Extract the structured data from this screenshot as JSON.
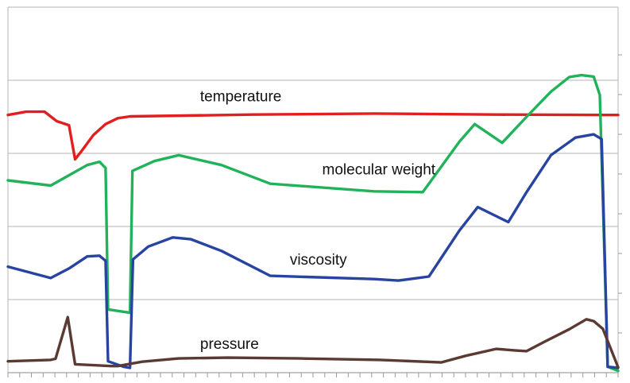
{
  "chart_data": {
    "type": "line",
    "title": "",
    "xlabel": "",
    "ylabel": "",
    "xlim": [
      0,
      100
    ],
    "ylim": [
      0,
      100
    ],
    "grid": true,
    "legend": "none",
    "gridlines_y": [
      0,
      20,
      40,
      60,
      80,
      100
    ],
    "x_minor_ticks": 52,
    "right_ticks": 8,
    "series": [
      {
        "name": "temperature",
        "color": "#e02020",
        "points": [
          [
            0,
            70.5
          ],
          [
            3,
            71.4
          ],
          [
            6,
            71.4
          ],
          [
            8,
            68.8
          ],
          [
            10,
            67.7
          ],
          [
            11,
            58.4
          ],
          [
            12,
            60.5
          ],
          [
            14,
            65.0
          ],
          [
            16,
            68.0
          ],
          [
            18,
            69.6
          ],
          [
            20,
            70.1
          ],
          [
            40,
            70.6
          ],
          [
            60,
            70.9
          ],
          [
            80,
            70.6
          ],
          [
            100,
            70.5
          ]
        ]
      },
      {
        "name": "molecular weight",
        "color": "#22b35a",
        "points": [
          [
            0,
            52.6
          ],
          [
            7,
            51.2
          ],
          [
            10,
            54.0
          ],
          [
            13,
            56.8
          ],
          [
            15,
            57.7
          ],
          [
            16,
            56.0
          ],
          [
            16.4,
            17.3
          ],
          [
            20,
            16.4
          ],
          [
            20.4,
            55.2
          ],
          [
            24,
            57.9
          ],
          [
            28,
            59.5
          ],
          [
            35,
            56.8
          ],
          [
            43,
            51.7
          ],
          [
            60,
            49.6
          ],
          [
            68,
            49.4
          ],
          [
            74,
            63.2
          ],
          [
            76.5,
            68.0
          ],
          [
            81,
            62.9
          ],
          [
            85,
            70.0
          ],
          [
            89,
            76.9
          ],
          [
            92,
            80.9
          ],
          [
            94,
            81.4
          ],
          [
            96,
            81.0
          ],
          [
            97,
            76.0
          ],
          [
            98.3,
            1.6
          ],
          [
            100,
            0.5
          ]
        ]
      },
      {
        "name": "viscosity",
        "color": "#2844a0",
        "points": [
          [
            0,
            29.0
          ],
          [
            7,
            25.9
          ],
          [
            10,
            28.5
          ],
          [
            13,
            31.8
          ],
          [
            15,
            32.0
          ],
          [
            16,
            30.6
          ],
          [
            16.4,
            3.1
          ],
          [
            19,
            1.6
          ],
          [
            20,
            1.3
          ],
          [
            20.5,
            31.0
          ],
          [
            23,
            34.5
          ],
          [
            27,
            37.0
          ],
          [
            30,
            36.5
          ],
          [
            35,
            33.3
          ],
          [
            43,
            26.5
          ],
          [
            60,
            25.6
          ],
          [
            64,
            25.2
          ],
          [
            69,
            26.3
          ],
          [
            74,
            38.9
          ],
          [
            77,
            45.3
          ],
          [
            82,
            41.2
          ],
          [
            85,
            49.4
          ],
          [
            89,
            59.5
          ],
          [
            93,
            64.3
          ],
          [
            96,
            65.2
          ],
          [
            97.3,
            63.9
          ],
          [
            98.3,
            1.6
          ],
          [
            100,
            1.3
          ]
        ]
      },
      {
        "name": "pressure",
        "color": "#5a3a32",
        "points": [
          [
            0,
            3.1
          ],
          [
            7,
            3.5
          ],
          [
            7.8,
            3.8
          ],
          [
            9.8,
            15.2
          ],
          [
            11,
            2.3
          ],
          [
            17,
            1.8
          ],
          [
            18,
            1.8
          ],
          [
            22,
            3.0
          ],
          [
            28,
            3.9
          ],
          [
            36,
            4.1
          ],
          [
            48,
            3.9
          ],
          [
            61,
            3.5
          ],
          [
            71,
            2.8
          ],
          [
            75,
            4.6
          ],
          [
            80,
            6.5
          ],
          [
            83,
            6.1
          ],
          [
            85,
            5.9
          ],
          [
            88,
            8.5
          ],
          [
            92,
            11.9
          ],
          [
            94.8,
            14.6
          ],
          [
            96,
            14.1
          ],
          [
            97.5,
            12.0
          ],
          [
            100,
            1.5
          ]
        ]
      }
    ],
    "annotations": [
      {
        "text": "temperature",
        "x": 31.5,
        "y": 74.2
      },
      {
        "text": "molecular weight",
        "x": 51.5,
        "y": 54.2
      },
      {
        "text": "viscosity",
        "x": 46.2,
        "y": 29.6
      },
      {
        "text": "pressure",
        "x": 31.5,
        "y": 6.5
      }
    ]
  }
}
